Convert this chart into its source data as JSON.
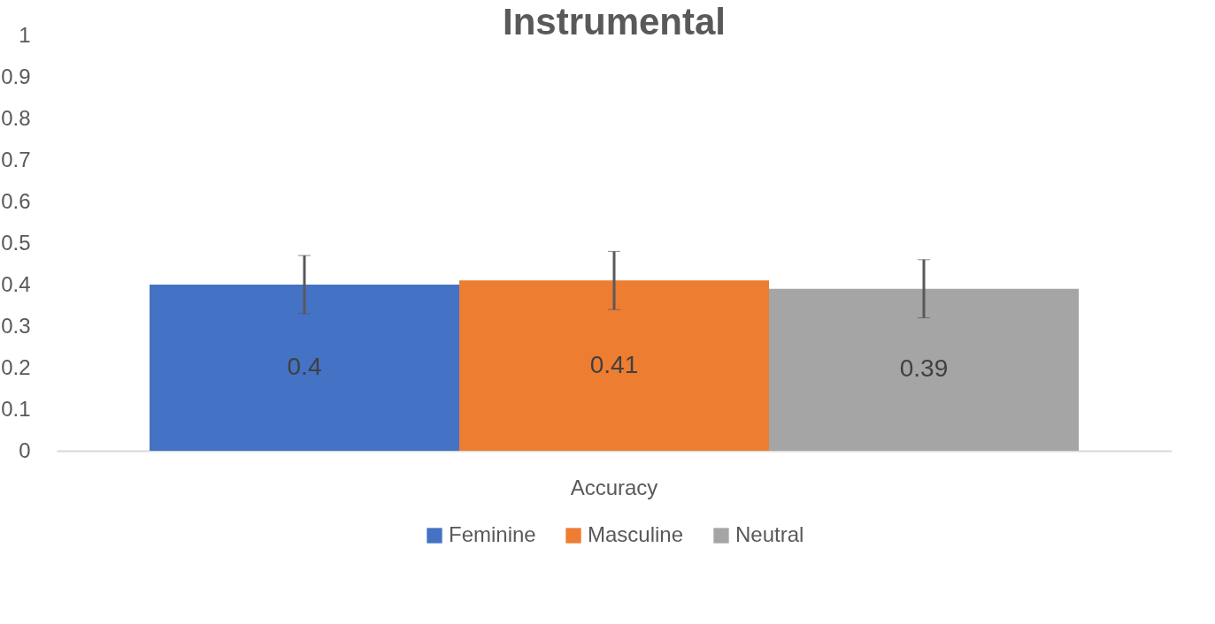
{
  "chart_data": {
    "type": "bar",
    "title": "Instrumental",
    "categories": [
      "Accuracy"
    ],
    "series": [
      {
        "name": "Feminine",
        "color": "#4472c4",
        "values": [
          0.4
        ],
        "errors": [
          0.07
        ]
      },
      {
        "name": "Masculine",
        "color": "#ed7d31",
        "values": [
          0.41
        ],
        "errors": [
          0.07
        ]
      },
      {
        "name": "Neutral",
        "color": "#a5a5a5",
        "values": [
          0.39
        ],
        "errors": [
          0.07
        ]
      }
    ],
    "ylim": [
      0,
      1
    ],
    "yticks": [
      0,
      0.1,
      0.2,
      0.3,
      0.4,
      0.5,
      0.6,
      0.7,
      0.8,
      0.9,
      1
    ],
    "grid": false,
    "legend": "bottom",
    "data_labels": true
  }
}
